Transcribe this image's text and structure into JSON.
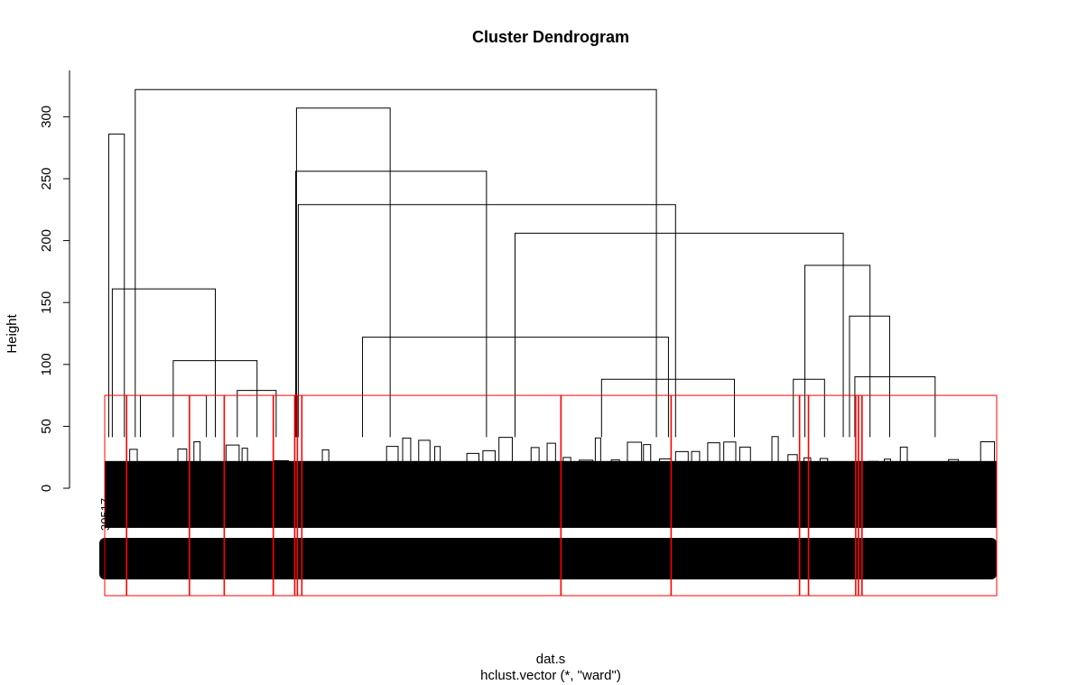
{
  "chart_data": {
    "type": "dendrogram",
    "title": "Cluster Dendrogram",
    "xlabel": "dat.s",
    "subtitle": "hclust.vector (*, \"ward\")",
    "ylabel": "Height",
    "ylim": [
      0,
      320
    ],
    "yticks": [
      0,
      50,
      100,
      150,
      200,
      250,
      300
    ],
    "leaf_label": "30517",
    "cut_height": 75,
    "cut_color": "#ff0000",
    "line_color": "#000000",
    "merges": [
      {
        "a": 0.0045,
        "b": 0.022,
        "h": 286
      },
      {
        "a": 0.0085,
        "b": 0.124,
        "h": 161
      },
      {
        "a": 0.0768,
        "b": 0.1708,
        "h": 103
      },
      {
        "a": 0.04,
        "b": 0.114,
        "h": 75
      },
      {
        "a": 0.1486,
        "b": 0.1922,
        "h": 79
      },
      {
        "a": 0.215,
        "b": 0.32,
        "h": 307
      },
      {
        "a": 0.214,
        "b": 0.428,
        "h": 256
      },
      {
        "a": 0.217,
        "b": 0.64,
        "h": 229
      },
      {
        "a": 0.46,
        "b": 0.828,
        "h": 206
      },
      {
        "a": 0.289,
        "b": 0.632,
        "h": 122
      },
      {
        "a": 0.557,
        "b": 0.706,
        "h": 88
      },
      {
        "a": 0.785,
        "b": 0.858,
        "h": 180
      },
      {
        "a": 0.835,
        "b": 0.88,
        "h": 139
      },
      {
        "a": 0.841,
        "b": 0.931,
        "h": 90
      },
      {
        "a": 0.772,
        "b": 0.807,
        "h": 88
      },
      {
        "a": 0.0342,
        "b": 0.6185,
        "h": 322
      }
    ]
  }
}
